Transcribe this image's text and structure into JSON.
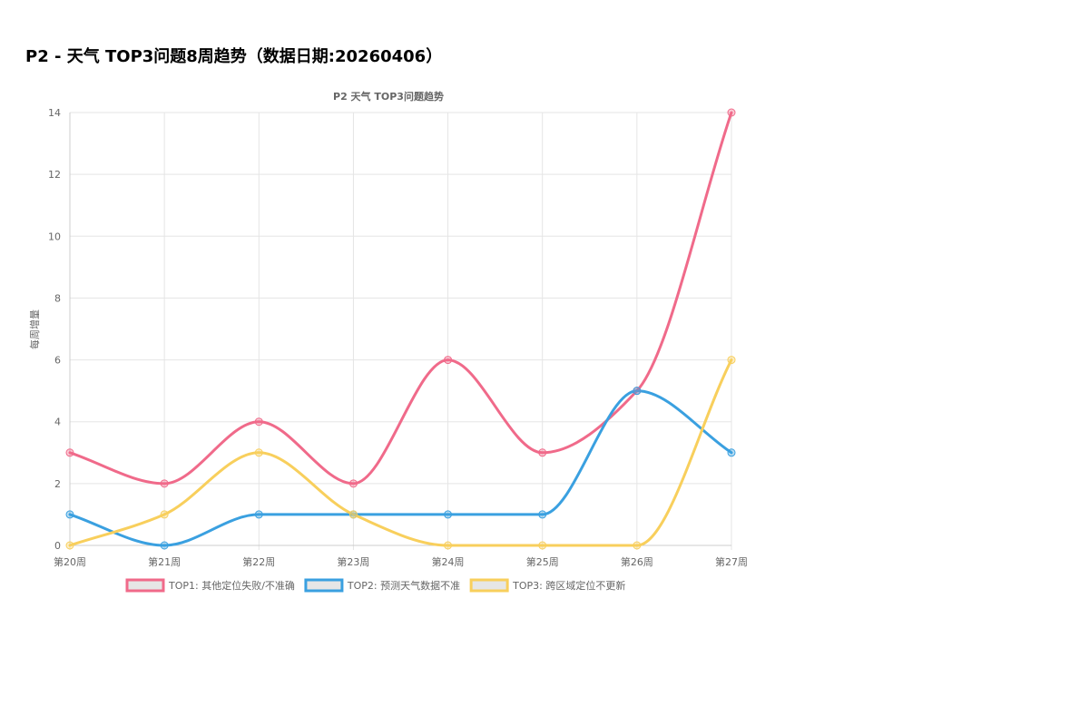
{
  "page": {
    "title": "P2 - 天气 TOP3问题8周趋势（数据日期:20260406）"
  },
  "chart_data": {
    "type": "line",
    "title": "P2 天气 TOP3问题趋势",
    "xlabel": "",
    "ylabel": "每周增量",
    "categories": [
      "第20周",
      "第21周",
      "第22周",
      "第23周",
      "第24周",
      "第25周",
      "第26周",
      "第27周"
    ],
    "ylim": [
      0,
      14
    ],
    "yticks": [
      0,
      2,
      4,
      6,
      8,
      10,
      12,
      14
    ],
    "grid": true,
    "legend_position": "bottom",
    "series": [
      {
        "name": "TOP1: 其他定位失败/不准确",
        "color": "#f06a8a",
        "values": [
          3,
          2,
          4,
          2,
          6,
          3,
          5,
          14
        ]
      },
      {
        "name": "TOP2: 预测天气数据不准",
        "color": "#3aa0e0",
        "values": [
          1,
          0,
          1,
          1,
          1,
          1,
          5,
          3
        ]
      },
      {
        "name": "TOP3: 跨区域定位不更新",
        "color": "#f8cf5c",
        "values": [
          0,
          1,
          3,
          1,
          0,
          0,
          0,
          6
        ]
      }
    ]
  }
}
